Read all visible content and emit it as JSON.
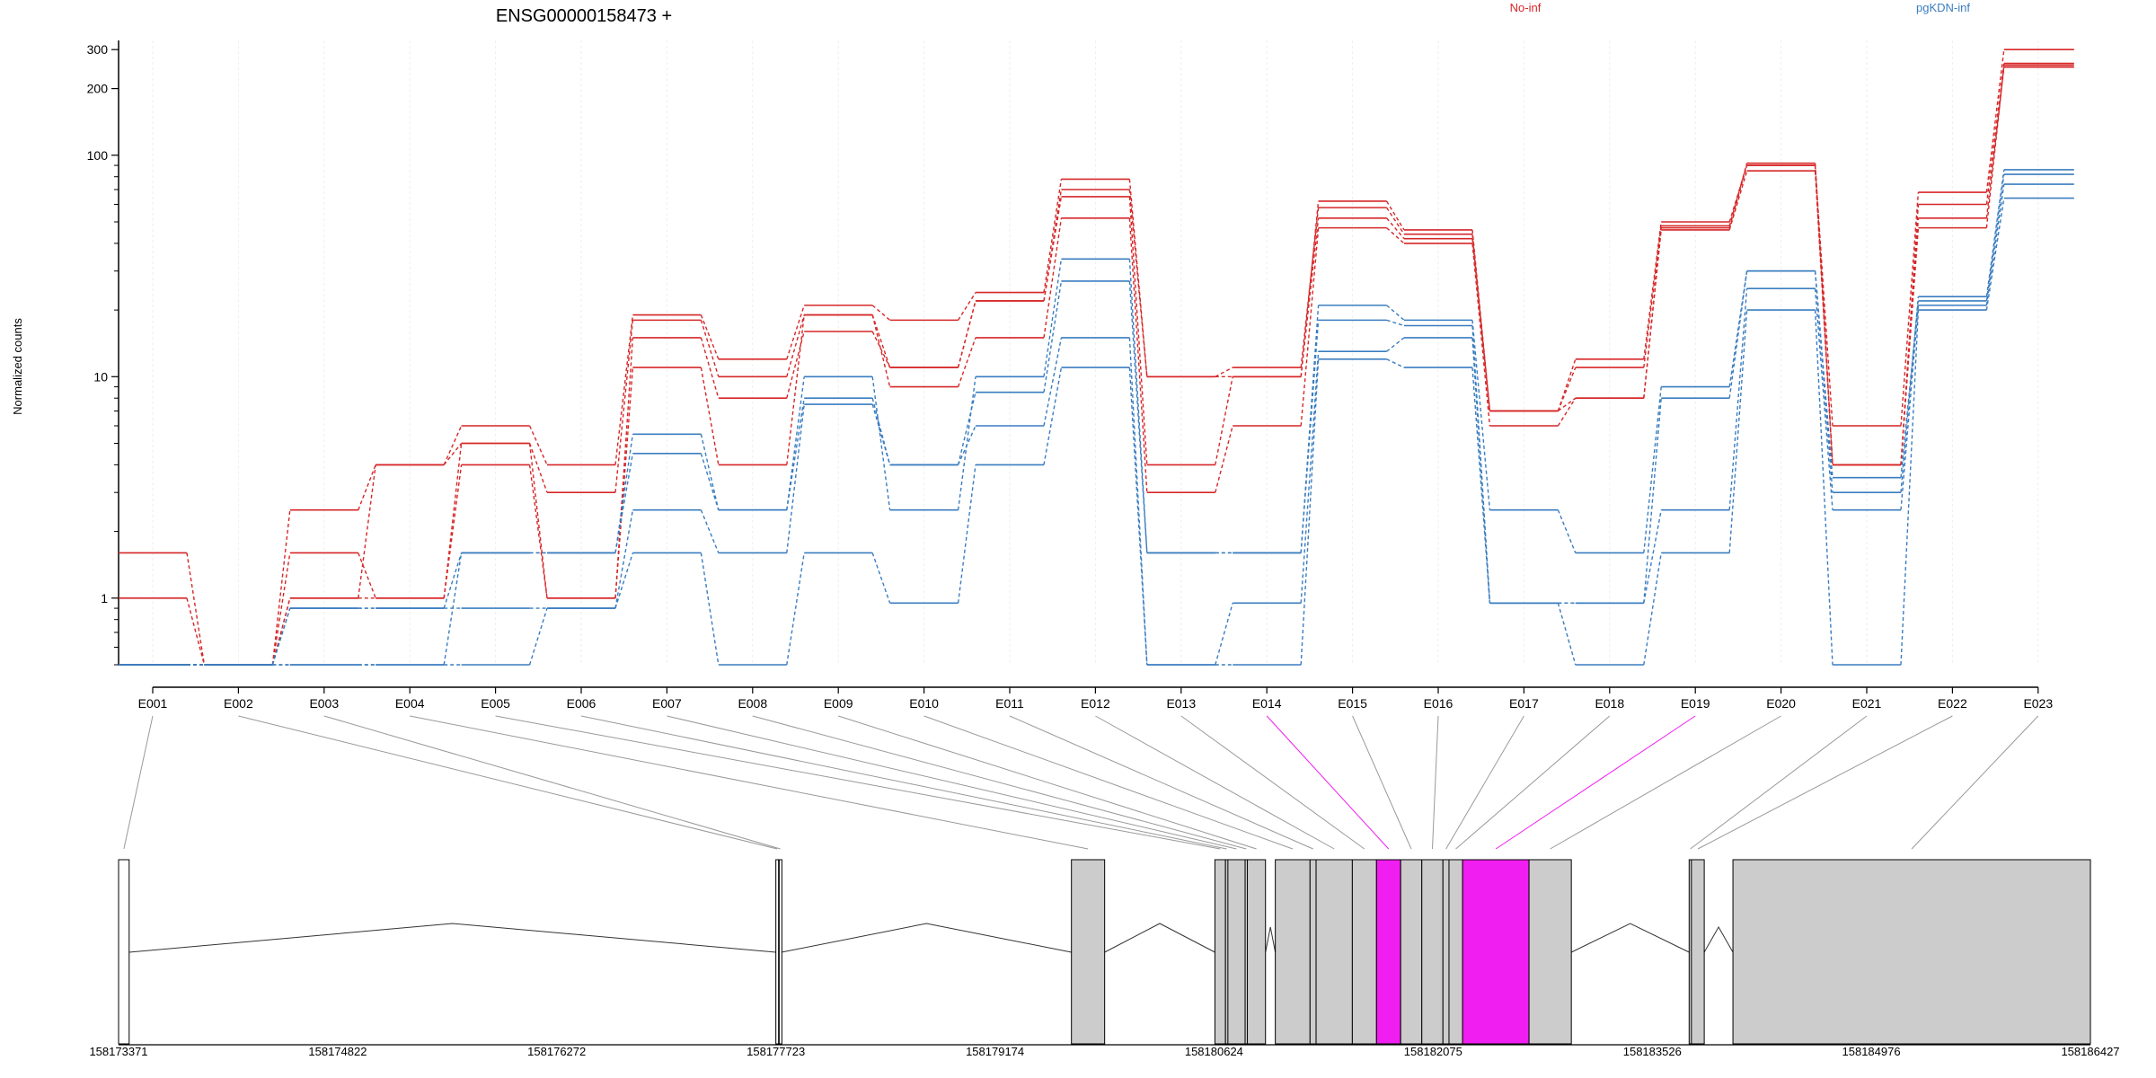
{
  "figure": {
    "title": "ENSG00000158473 +",
    "ylabel": "Normalized counts"
  },
  "chart_data": {
    "type": "line",
    "title": "ENSG00000158473 +",
    "ylabel": "Normalized counts",
    "xlabel": "",
    "yscale": "log",
    "ylim": [
      0.5,
      330
    ],
    "ytick_labels": [
      "1",
      "10",
      "100",
      "200",
      "300"
    ],
    "ytick_values": [
      1,
      10,
      100,
      200,
      300
    ],
    "grid": false,
    "legend_placement": "top",
    "categories": [
      "E001",
      "E002",
      "E003",
      "E004",
      "E005",
      "E006",
      "E007",
      "E008",
      "E009",
      "E010",
      "E011",
      "E012",
      "E013",
      "E014",
      "E015",
      "E016",
      "E017",
      "E018",
      "E019",
      "E020",
      "E021",
      "E022",
      "E023"
    ],
    "highlighted_exons": [
      "E014",
      "E019"
    ],
    "highlight_color": "#F01EF0",
    "groups": [
      {
        "name": "No-inf",
        "color": "#D62728",
        "series": [
          {
            "values": [
              1.6,
              0.5,
              2.5,
              4,
              6,
              4,
              19,
              12,
              21,
              18,
              24,
              78,
              10,
              10,
              62,
              46,
              7,
              12,
              50,
              90,
              6,
              68,
              300
            ]
          },
          {
            "values": [
              1,
              0.5,
              1,
              1,
              5,
              3,
              18,
              10,
              19,
              11,
              22,
              70,
              10,
              11,
              58,
              44,
              7,
              11,
              48,
              92,
              4,
              60,
              260
            ]
          },
          {
            "values": [
              0.5,
              0.5,
              1.6,
              1,
              4,
              1,
              15,
              8,
              16,
              11,
              22,
              65,
              4,
              10,
              52,
              42,
              7,
              8,
              47,
              90,
              4,
              52,
              250
            ]
          },
          {
            "values": [
              0.5,
              0.5,
              1,
              4,
              5,
              1,
              11,
              4,
              19,
              9,
              15,
              52,
              3,
              6,
              47,
              40,
              6,
              8,
              46,
              85,
              4,
              47,
              255
            ]
          }
        ]
      },
      {
        "name": "pgKDN-inf",
        "color": "#3A7DC0",
        "series": [
          {
            "values": [
              0.5,
              0.5,
              0.5,
              0.5,
              1.6,
              1.6,
              5.5,
              2.5,
              10,
              2.5,
              10,
              34,
              1.6,
              1.6,
              21,
              18,
              2.5,
              1.6,
              9,
              30,
              3,
              23,
              86
            ]
          },
          {
            "values": [
              0.5,
              0.5,
              0.9,
              0.9,
              1.6,
              1.6,
              4.5,
              2.5,
              8,
              4,
              8.5,
              27,
              1.6,
              1.6,
              18,
              17,
              0.95,
              0.95,
              8,
              30,
              3.5,
              22,
              82
            ]
          },
          {
            "values": [
              0.5,
              0.5,
              0.9,
              0.9,
              0.9,
              0.9,
              2.5,
              1.6,
              7.5,
              4,
              6,
              15,
              0.5,
              0.95,
              13,
              15,
              0.95,
              0.95,
              2.5,
              25,
              2.5,
              21,
              74
            ]
          },
          {
            "values": [
              0.5,
              0.5,
              0.5,
              0.5,
              0.5,
              0.9,
              1.6,
              0.5,
              1.6,
              0.95,
              4,
              11,
              0.5,
              0.5,
              12,
              11,
              0.95,
              0.5,
              1.6,
              20,
              0.5,
              20,
              64
            ]
          }
        ]
      }
    ],
    "gene_model": {
      "coordinate_labels": [
        "158173371",
        "158174822",
        "158176272",
        "158177723",
        "158179174",
        "158180624",
        "158182075",
        "158183526",
        "158184976",
        "158186427"
      ],
      "coordinate_values": [
        158173371,
        158174822,
        158176272,
        158177723,
        158179174,
        158180624,
        158182075,
        158183526,
        158184976,
        158186427
      ],
      "exon_fill": "#CCCCCC",
      "exons": [
        {
          "id": "E001",
          "start": 158173371,
          "end": 158173441,
          "fill": "#FFFFFF"
        },
        {
          "id": "E002",
          "start": 158177723,
          "end": 158177740,
          "fill": "#FFFFFF"
        },
        {
          "id": "E003",
          "start": 158177745,
          "end": 158177760,
          "fill": "#FFFFFF"
        },
        {
          "id": "E004",
          "start": 158179680,
          "end": 158179900,
          "fill": "#CCCCCC"
        },
        {
          "id": "E005",
          "start": 158180630,
          "end": 158180700,
          "fill": "#CCCCCC"
        },
        {
          "id": "E006",
          "start": 158180700,
          "end": 158180716,
          "fill": "#CCCCCC"
        },
        {
          "id": "E007",
          "start": 158180716,
          "end": 158180830,
          "fill": "#CCCCCC"
        },
        {
          "id": "E008",
          "start": 158180830,
          "end": 158180845,
          "fill": "#CCCCCC"
        },
        {
          "id": "E009",
          "start": 158180845,
          "end": 158180965,
          "fill": "#CCCCCC"
        },
        {
          "id": "E010",
          "start": 158181030,
          "end": 158181260,
          "fill": "#CCCCCC"
        },
        {
          "id": "E011",
          "start": 158181260,
          "end": 158181300,
          "fill": "#CCCCCC"
        },
        {
          "id": "E012",
          "start": 158181300,
          "end": 158181540,
          "fill": "#CCCCCC"
        },
        {
          "id": "E013",
          "start": 158181540,
          "end": 158181700,
          "fill": "#CCCCCC"
        },
        {
          "id": "E014",
          "start": 158181700,
          "end": 158181860,
          "fill": "#F01EF0"
        },
        {
          "id": "E015",
          "start": 158181860,
          "end": 158182000,
          "fill": "#CCCCCC"
        },
        {
          "id": "E016",
          "start": 158182000,
          "end": 158182140,
          "fill": "#CCCCCC"
        },
        {
          "id": "E017",
          "start": 158182140,
          "end": 158182180,
          "fill": "#CCCCCC"
        },
        {
          "id": "E018",
          "start": 158182180,
          "end": 158182270,
          "fill": "#CCCCCC"
        },
        {
          "id": "E019",
          "start": 158182270,
          "end": 158182710,
          "fill": "#F01EF0"
        },
        {
          "id": "E020",
          "start": 158182710,
          "end": 158182990,
          "fill": "#CCCCCC"
        },
        {
          "id": "E021",
          "start": 158183770,
          "end": 158183785,
          "fill": "#CCCCCC"
        },
        {
          "id": "E022",
          "start": 158183785,
          "end": 158183870,
          "fill": "#CCCCCC"
        },
        {
          "id": "E023",
          "start": 158184060,
          "end": 158186427,
          "fill": "#CCCCCC"
        }
      ]
    }
  }
}
